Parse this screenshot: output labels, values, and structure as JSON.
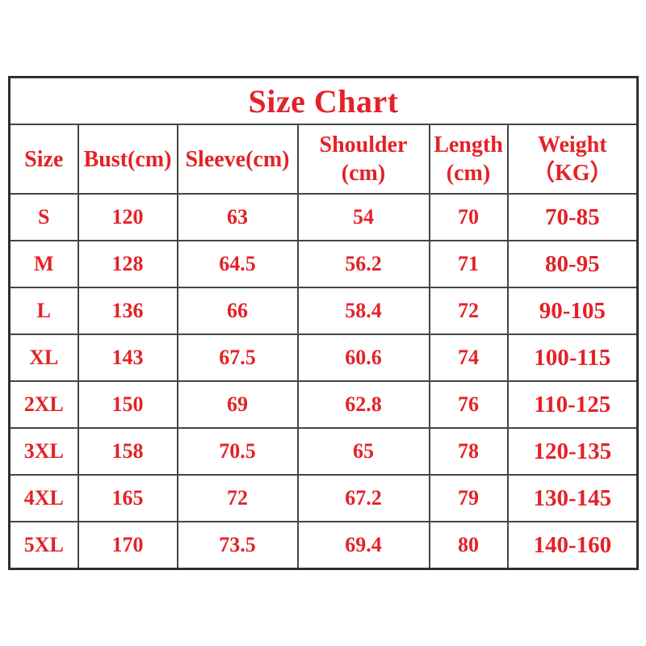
{
  "title": "Size Chart",
  "colors": {
    "text_red": "#e32227",
    "border_dark": "#2f2f2f",
    "border_inner": "#454545",
    "background": "#ffffff"
  },
  "table": {
    "columns": [
      {
        "id": "size",
        "label": "Size",
        "label2": ""
      },
      {
        "id": "bust",
        "label": "Bust(cm)",
        "label2": ""
      },
      {
        "id": "sleeve",
        "label": "Sleeve(cm)",
        "label2": ""
      },
      {
        "id": "shoulder",
        "label": "Shoulder",
        "label2": "(cm)"
      },
      {
        "id": "length",
        "label": "Length",
        "label2": "(cm)"
      },
      {
        "id": "weight",
        "label": "Weight",
        "label2": "（KG）"
      }
    ],
    "rows": [
      [
        "S",
        "120",
        "63",
        "54",
        "70",
        "70-85"
      ],
      [
        "M",
        "128",
        "64.5",
        "56.2",
        "71",
        "80-95"
      ],
      [
        "L",
        "136",
        "66",
        "58.4",
        "72",
        "90-105"
      ],
      [
        "XL",
        "143",
        "67.5",
        "60.6",
        "74",
        "100-115"
      ],
      [
        "2XL",
        "150",
        "69",
        "62.8",
        "76",
        "110-125"
      ],
      [
        "3XL",
        "158",
        "70.5",
        "65",
        "78",
        "120-135"
      ],
      [
        "4XL",
        "165",
        "72",
        "67.2",
        "79",
        "130-145"
      ],
      [
        "5XL",
        "170",
        "73.5",
        "69.4",
        "80",
        "140-160"
      ]
    ]
  },
  "chart_data": {
    "type": "table",
    "title": "Size Chart",
    "columns": [
      "Size",
      "Bust(cm)",
      "Sleeve(cm)",
      "Shoulder (cm)",
      "Length (cm)",
      "Weight (KG)"
    ],
    "rows": [
      [
        "S",
        120,
        63,
        54,
        70,
        "70-85"
      ],
      [
        "M",
        128,
        64.5,
        56.2,
        71,
        "80-95"
      ],
      [
        "L",
        136,
        66,
        58.4,
        72,
        "90-105"
      ],
      [
        "XL",
        143,
        67.5,
        60.6,
        74,
        "100-115"
      ],
      [
        "2XL",
        150,
        69,
        62.8,
        76,
        "110-125"
      ],
      [
        "3XL",
        158,
        70.5,
        65,
        78,
        "120-135"
      ],
      [
        "4XL",
        165,
        72,
        67.2,
        79,
        "130-145"
      ],
      [
        "5XL",
        170,
        73.5,
        69.4,
        80,
        "140-160"
      ]
    ]
  }
}
